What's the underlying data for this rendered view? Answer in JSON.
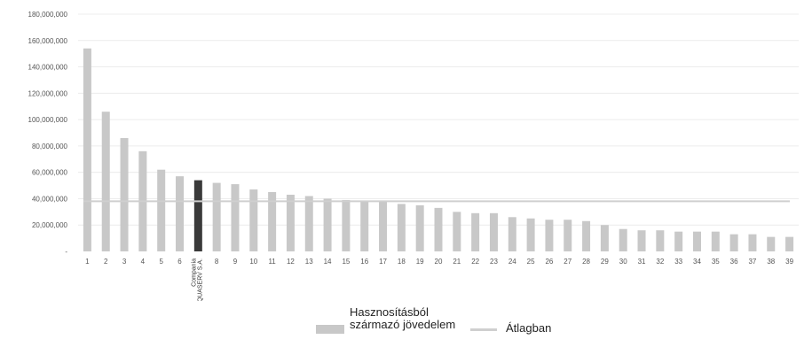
{
  "chart_data": {
    "type": "bar",
    "title": "",
    "xlabel": "",
    "ylabel": "",
    "ylim": [
      0,
      180000000
    ],
    "yticks": [
      "-",
      "20,000,000",
      "40,000,000",
      "60,000,000",
      "80,000,000",
      "100,000,000",
      "120,000,000",
      "140,000,000",
      "160,000,000",
      "180,000,000"
    ],
    "categories": [
      "1",
      "2",
      "3",
      "4",
      "5",
      "6",
      "Compania AQUASERV S.A.",
      "8",
      "9",
      "10",
      "11",
      "12",
      "13",
      "14",
      "15",
      "16",
      "17",
      "18",
      "19",
      "20",
      "21",
      "22",
      "23",
      "24",
      "25",
      "26",
      "27",
      "28",
      "29",
      "30",
      "31",
      "32",
      "33",
      "34",
      "35",
      "36",
      "37",
      "38",
      "39"
    ],
    "series": [
      {
        "name": "Hasznosításból származó jövedelem",
        "values": [
          154000000,
          106000000,
          86000000,
          76000000,
          62000000,
          57000000,
          54000000,
          52000000,
          51000000,
          47000000,
          45000000,
          43000000,
          42000000,
          40000000,
          39000000,
          38000000,
          38000000,
          36000000,
          35000000,
          33000000,
          30000000,
          29000000,
          29000000,
          26000000,
          25000000,
          24000000,
          24000000,
          23000000,
          20000000,
          17000000,
          16000000,
          16000000,
          15000000,
          15000000,
          15000000,
          13000000,
          13000000,
          11000000,
          11000000
        ]
      },
      {
        "name": "Átlagban",
        "type": "line",
        "value": 38000000
      }
    ],
    "highlight_index": 6,
    "colors": {
      "bar": "#c8c8c8",
      "highlight": "#3a3a3a",
      "average": "#cfcfcf",
      "grid": "#ececec",
      "tick": "#555555"
    },
    "grid": true,
    "legend_position": "bottom"
  },
  "legend": {
    "bar_label": "Hasznosításból származó jövedelem",
    "line_label": "Átlagban"
  }
}
